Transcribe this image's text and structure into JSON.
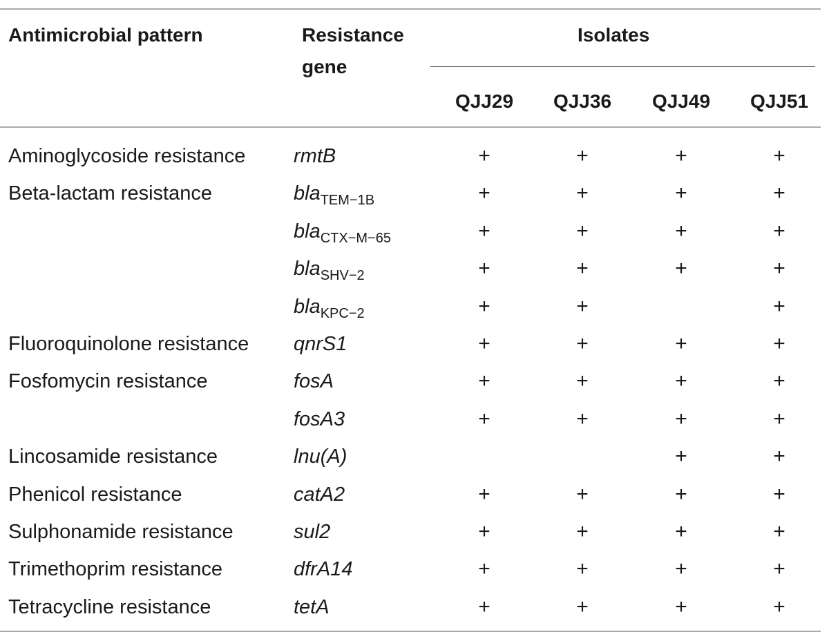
{
  "table": {
    "headers": {
      "pattern": "Antimicrobial pattern",
      "gene_line1": "Resistance",
      "gene_line2": "gene",
      "isolates": "Isolates",
      "isolate_names": [
        "QJJ29",
        "QJJ36",
        "QJJ49",
        "QJJ51"
      ]
    },
    "rows": [
      {
        "pattern": "Aminoglycoside resistance",
        "gene": "rmtB",
        "gene_sub": "",
        "marks": [
          "+",
          "+",
          "+",
          "+"
        ]
      },
      {
        "pattern": "Beta-lactam resistance",
        "gene": "bla",
        "gene_sub": "TEM−1B",
        "marks": [
          "+",
          "+",
          "+",
          "+"
        ]
      },
      {
        "pattern": "",
        "gene": "bla",
        "gene_sub": "CTX−M−65",
        "marks": [
          "+",
          "+",
          "+",
          "+"
        ]
      },
      {
        "pattern": "",
        "gene": "bla",
        "gene_sub": "SHV−2",
        "marks": [
          "+",
          "+",
          "+",
          "+"
        ]
      },
      {
        "pattern": "",
        "gene": "bla",
        "gene_sub": "KPC−2",
        "marks": [
          "+",
          "+",
          "",
          "+"
        ]
      },
      {
        "pattern": "Fluoroquinolone resistance",
        "gene": "qnrS1",
        "gene_sub": "",
        "marks": [
          "+",
          "+",
          "+",
          "+"
        ]
      },
      {
        "pattern": "Fosfomycin resistance",
        "gene": "fosA",
        "gene_sub": "",
        "marks": [
          "+",
          "+",
          "+",
          "+"
        ]
      },
      {
        "pattern": "",
        "gene": "fosA3",
        "gene_sub": "",
        "marks": [
          "+",
          "+",
          "+",
          "+"
        ]
      },
      {
        "pattern": "Lincosamide resistance",
        "gene": "lnu(A)",
        "gene_sub": "",
        "marks": [
          "",
          "",
          "+",
          "+"
        ]
      },
      {
        "pattern": "Phenicol resistance",
        "gene": "catA2",
        "gene_sub": "",
        "marks": [
          "+",
          "+",
          "+",
          "+"
        ]
      },
      {
        "pattern": "Sulphonamide resistance",
        "gene": "sul2",
        "gene_sub": "",
        "marks": [
          "+",
          "+",
          "+",
          "+"
        ]
      },
      {
        "pattern": "Trimethoprim resistance",
        "gene": "dfrA14",
        "gene_sub": "",
        "marks": [
          "+",
          "+",
          "+",
          "+"
        ]
      },
      {
        "pattern": "Tetracycline resistance",
        "gene": "tetA",
        "gene_sub": "",
        "marks": [
          "+",
          "+",
          "+",
          "+"
        ]
      }
    ]
  }
}
